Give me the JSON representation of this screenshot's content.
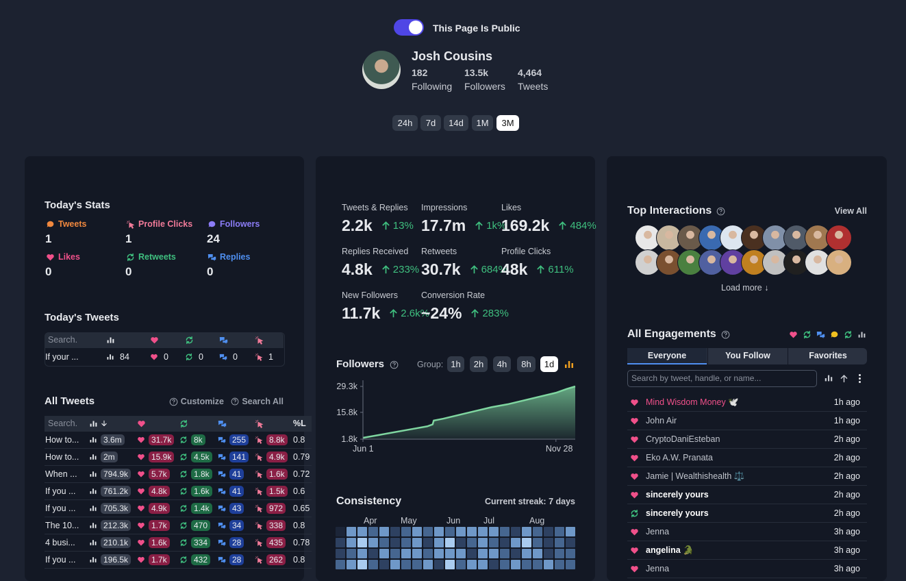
{
  "header": {
    "toggle_label": "This Page Is Public",
    "name": "Josh Cousins",
    "stats": [
      {
        "value": "182",
        "label": "Following"
      },
      {
        "value": "13.5k",
        "label": "Followers"
      },
      {
        "value": "4,464",
        "label": "Tweets"
      }
    ],
    "ranges": [
      "24h",
      "7d",
      "14d",
      "1M",
      "3M"
    ],
    "active_range": "3M"
  },
  "today_stats": {
    "title": "Today's Stats",
    "items": [
      {
        "label": "Tweets",
        "value": "1",
        "color": "#f0883e",
        "icon": "chat"
      },
      {
        "label": "Profile Clicks",
        "value": "1",
        "color": "#f07a98",
        "icon": "click"
      },
      {
        "label": "Followers",
        "value": "24",
        "color": "#8b7cf6",
        "icon": "chat"
      },
      {
        "label": "Likes",
        "value": "0",
        "color": "#f0508a",
        "icon": "heart"
      },
      {
        "label": "Retweets",
        "value": "0",
        "color": "#3fbf7f",
        "icon": "retweet"
      },
      {
        "label": "Replies",
        "value": "0",
        "color": "#4f8ff0",
        "icon": "reply"
      }
    ]
  },
  "today_tweets": {
    "title": "Today's Tweets",
    "search": "Search.",
    "rows": [
      [
        "If your ...",
        "84",
        "0",
        "0",
        "0",
        "1"
      ]
    ]
  },
  "all_tweets": {
    "title": "All Tweets",
    "customize": "Customize",
    "search_all": "Search All",
    "search": "Search.",
    "last_col": "%L",
    "rows": [
      [
        "How to...",
        "3.6m",
        "31.7k",
        "8k",
        "255",
        "8.8k",
        "0.8"
      ],
      [
        "How to...",
        "2m",
        "15.9k",
        "4.5k",
        "141",
        "4.9k",
        "0.79"
      ],
      [
        "When ...",
        "794.9k",
        "5.7k",
        "1.8k",
        "41",
        "1.6k",
        "0.72"
      ],
      [
        "If you ...",
        "761.2k",
        "4.8k",
        "1.6k",
        "41",
        "1.5k",
        "0.6"
      ],
      [
        "If you ...",
        "705.3k",
        "4.9k",
        "1.4k",
        "43",
        "972",
        "0.65"
      ],
      [
        "The 10...",
        "212.3k",
        "1.7k",
        "470",
        "34",
        "338",
        "0.8"
      ],
      [
        "4 busi...",
        "210.1k",
        "1.6k",
        "334",
        "28",
        "435",
        "0.78"
      ],
      [
        "If you ...",
        "196.5k",
        "1.7k",
        "432",
        "28",
        "262",
        "0.8"
      ]
    ]
  },
  "metrics": [
    {
      "label": "Tweets & Replies",
      "value": "2.2k",
      "change": "13%"
    },
    {
      "label": "Impressions",
      "value": "17.7m",
      "change": "1k%"
    },
    {
      "label": "Likes",
      "value": "169.2k",
      "change": "484%"
    },
    {
      "label": "Replies Received",
      "value": "4.8k",
      "change": "233%"
    },
    {
      "label": "Retweets",
      "value": "30.7k",
      "change": "684%"
    },
    {
      "label": "Profile Clicks",
      "value": "48k",
      "change": "611%"
    },
    {
      "label": "New Followers",
      "value": "11.7k",
      "change": "2.6k%"
    },
    {
      "label": "Conversion Rate",
      "value": "~24%",
      "change": "283%"
    }
  ],
  "followers": {
    "type": "area",
    "title": "Followers",
    "group_label": "Group:",
    "groups": [
      "1h",
      "2h",
      "4h",
      "8h",
      "1d"
    ],
    "active_group": "1d",
    "color": "#7fd6a0",
    "x": [
      0,
      15,
      30,
      45,
      60,
      65,
      66,
      75,
      90,
      105,
      120,
      135,
      150,
      165,
      180,
      190,
      198
    ],
    "values": [
      2500,
      4000,
      5500,
      7000,
      8500,
      9500,
      11500,
      12500,
      14500,
      16500,
      18500,
      20000,
      22000,
      24000,
      26000,
      28000,
      29300
    ],
    "xlim": [
      0,
      198
    ],
    "xticks": [
      {
        "value": 0,
        "label": "Jun 1"
      },
      {
        "value": 180,
        "label": "Nov 28"
      }
    ],
    "ylim": [
      1800,
      29300
    ],
    "yticks": [
      {
        "value": 29300,
        "label": "29.3k"
      },
      {
        "value": 15800,
        "label": "15.8k"
      },
      {
        "value": 1800,
        "label": "1.8k"
      }
    ]
  },
  "consistency": {
    "title": "Consistency",
    "streak": "Current streak: 7 days",
    "months": [
      "Apr",
      "May",
      "Jun",
      "Jul",
      "Aug"
    ],
    "palette": [
      "#1c2538",
      "#2e4161",
      "#466690",
      "#6f98c8",
      "#a9cbef"
    ],
    "levels": [
      [
        0,
        3,
        3,
        2,
        3,
        1,
        2,
        3,
        2,
        3,
        2,
        3,
        3,
        3,
        3,
        2,
        1,
        3,
        2,
        1,
        2,
        3
      ],
      [
        1,
        3,
        4,
        3,
        2,
        1,
        2,
        3,
        1,
        3,
        4,
        1,
        2,
        3,
        2,
        1,
        3,
        4,
        2,
        1,
        2,
        1
      ],
      [
        1,
        2,
        3,
        1,
        3,
        2,
        3,
        3,
        2,
        3,
        3,
        3,
        1,
        3,
        3,
        2,
        1,
        3,
        3,
        1,
        2,
        2
      ],
      [
        2,
        3,
        4,
        2,
        1,
        3,
        2,
        2,
        3,
        1,
        4,
        2,
        3,
        3,
        1,
        2,
        3,
        2,
        2,
        3,
        2,
        2
      ]
    ]
  },
  "top_interactions": {
    "title": "Top Interactions",
    "view_all": "View All",
    "load_more": "Load more ↓"
  },
  "engagements": {
    "title": "All Engagements",
    "tabs": [
      "Everyone",
      "You Follow",
      "Favorites"
    ],
    "active_tab": "Everyone",
    "search_placeholder": "Search by tweet, handle, or name...",
    "rows": [
      {
        "kind": "like",
        "name": "Mind Wisdom Money 🕊️",
        "time": "1h ago",
        "style": "highlight"
      },
      {
        "kind": "like",
        "name": "John Air",
        "time": "1h ago",
        "style": "normal"
      },
      {
        "kind": "like",
        "name": "CryptoDaniEsteban",
        "time": "2h ago",
        "style": "normal"
      },
      {
        "kind": "like",
        "name": "Eko A.W. Pranata",
        "time": "2h ago",
        "style": "normal"
      },
      {
        "kind": "like",
        "name": "Jamie | Wealthishealth ⚖️",
        "time": "2h ago",
        "style": "normal"
      },
      {
        "kind": "like",
        "name": "sincerely yours",
        "time": "2h ago",
        "style": "bold"
      },
      {
        "kind": "retweet",
        "name": "sincerely yours",
        "time": "2h ago",
        "style": "bold"
      },
      {
        "kind": "like",
        "name": "Jenna",
        "time": "3h ago",
        "style": "normal"
      },
      {
        "kind": "like",
        "name": "angelina 🐊",
        "time": "3h ago",
        "style": "bold"
      },
      {
        "kind": "like",
        "name": "Jenna",
        "time": "3h ago",
        "style": "normal"
      }
    ]
  }
}
